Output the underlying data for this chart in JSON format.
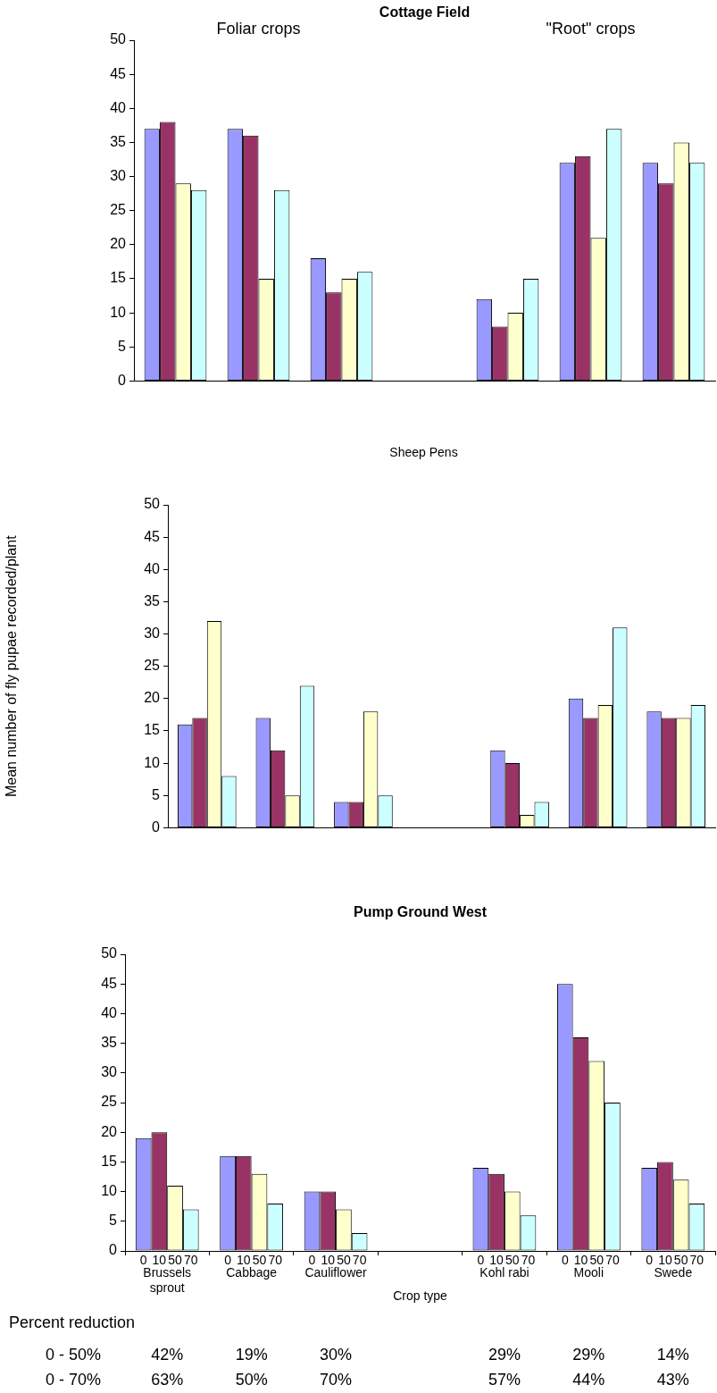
{
  "chart_data": [
    {
      "type": "bar",
      "title": "Cottage Field",
      "categories": [
        null,
        null,
        null,
        null,
        null,
        null,
        null
      ],
      "series": [
        {
          "color": "#9999ff",
          "values": [
            37,
            37,
            18,
            null,
            12,
            32,
            32
          ]
        },
        {
          "color": "#993366",
          "values": [
            38,
            36,
            13,
            null,
            8,
            33,
            29
          ]
        },
        {
          "color": "#ffffcc",
          "values": [
            29,
            15,
            15,
            null,
            10,
            21,
            35
          ]
        },
        {
          "color": "#ccffff",
          "values": [
            28,
            28,
            16,
            null,
            15,
            37,
            32
          ]
        }
      ],
      "ylim": [
        0,
        50
      ],
      "yticks": [
        0,
        5,
        10,
        15,
        20,
        25,
        30,
        35,
        40,
        45,
        50
      ],
      "annotations": [
        "Foliar crops",
        "\"Root\" crops"
      ]
    },
    {
      "type": "bar",
      "title": "Sheep Pens",
      "ylabel": "Mean number of fly pupae recorded/plant",
      "categories": [
        null,
        null,
        null,
        null,
        null,
        null,
        null
      ],
      "series": [
        {
          "color": "#9999ff",
          "values": [
            16,
            17,
            4,
            null,
            12,
            20,
            18
          ]
        },
        {
          "color": "#993366",
          "values": [
            17,
            12,
            4,
            null,
            10,
            17,
            17
          ]
        },
        {
          "color": "#ffffcc",
          "values": [
            32,
            5,
            18,
            null,
            2,
            19,
            17
          ]
        },
        {
          "color": "#ccffff",
          "values": [
            8,
            22,
            5,
            null,
            4,
            31,
            19
          ]
        }
      ],
      "ylim": [
        0,
        50
      ],
      "yticks": [
        0,
        5,
        10,
        15,
        20,
        25,
        30,
        35,
        40,
        45,
        50
      ]
    },
    {
      "type": "bar",
      "title": "Pump Ground West",
      "xlabel": "Crop type",
      "categories": [
        "Brussels sprout",
        "Cabbage",
        "Cauliflower",
        null,
        "Kohl rabi",
        "Mooli",
        "Swede"
      ],
      "series": [
        {
          "name": "0",
          "color": "#9999ff",
          "values": [
            19,
            16,
            10,
            null,
            14,
            45,
            14
          ]
        },
        {
          "name": "10",
          "color": "#993366",
          "values": [
            20,
            16,
            10,
            null,
            13,
            36,
            15
          ]
        },
        {
          "name": "50",
          "color": "#ffffcc",
          "values": [
            11,
            13,
            7,
            null,
            10,
            32,
            12
          ]
        },
        {
          "name": "70",
          "color": "#ccffff",
          "values": [
            7,
            8,
            3,
            null,
            6,
            25,
            8
          ]
        }
      ],
      "ylim": [
        0,
        50
      ],
      "yticks": [
        0,
        5,
        10,
        15,
        20,
        25,
        30,
        35,
        40,
        45,
        50
      ],
      "annotations": [
        "Percent reduction",
        "0 - 50%",
        "42%",
        "19%",
        "30%",
        "29%",
        "29%",
        "14%",
        "0 - 70%",
        "63%",
        "50%",
        "70%",
        "57%",
        "44%",
        "43%"
      ]
    }
  ]
}
